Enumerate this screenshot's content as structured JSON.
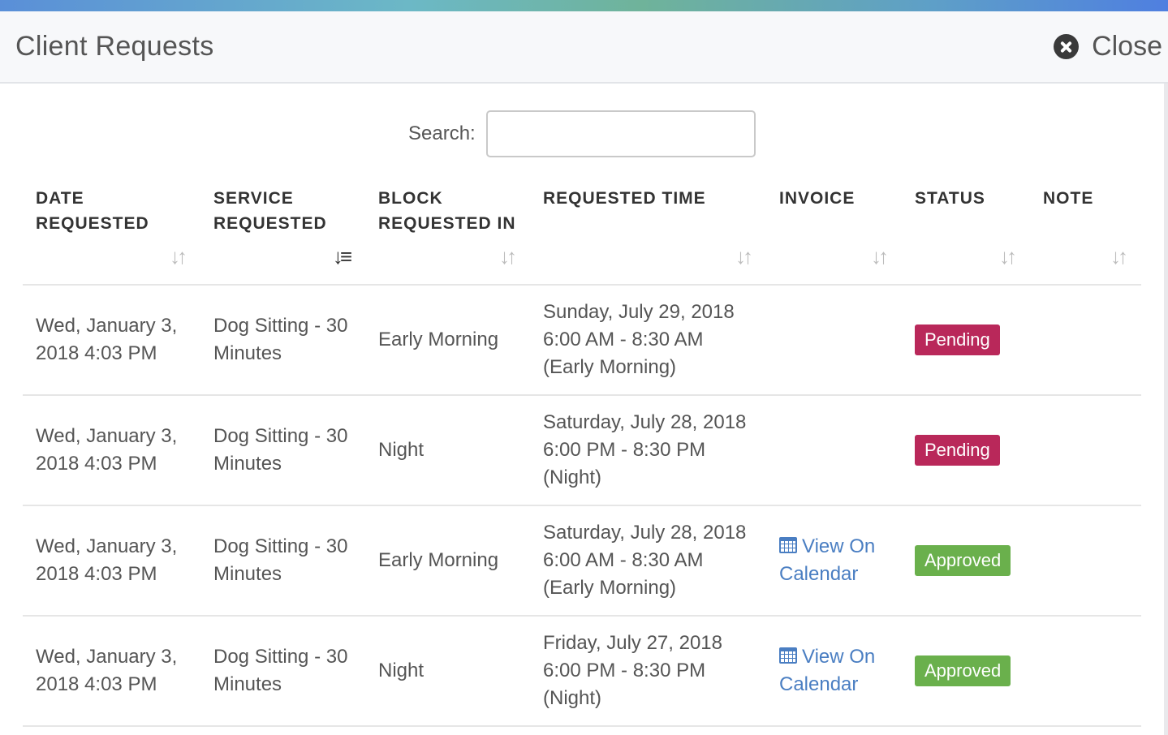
{
  "header": {
    "title": "Client Requests",
    "close_label": "Close"
  },
  "search": {
    "label": "Search:",
    "value": ""
  },
  "columns": [
    {
      "label": "DATE REQUESTED",
      "sort": "unsorted"
    },
    {
      "label": "SERVICE REQUESTED",
      "sort": "sorted-ascending"
    },
    {
      "label": "BLOCK REQUESTED IN",
      "sort": "unsorted"
    },
    {
      "label": "REQUESTED TIME",
      "sort": "unsorted"
    },
    {
      "label": "INVOICE",
      "sort": "unsorted"
    },
    {
      "label": "STATUS",
      "sort": "unsorted"
    },
    {
      "label": "NOTE",
      "sort": "unsorted"
    }
  ],
  "rows": [
    {
      "date_requested": "Wed, January 3, 2018 4:03 PM",
      "service": "Dog Sitting - 30 Minutes",
      "block": "Early Morning",
      "time_date": "Sunday, July 29, 2018",
      "time_range": "6:00 AM - 8:30 AM",
      "time_block": "(Early Morning)",
      "invoice": "",
      "status": "Pending",
      "status_color": "#b9285a",
      "note": ""
    },
    {
      "date_requested": "Wed, January 3, 2018 4:03 PM",
      "service": "Dog Sitting - 30 Minutes",
      "block": "Night",
      "time_date": "Saturday, July 28, 2018",
      "time_range": "6:00 PM - 8:30 PM",
      "time_block": "(Night)",
      "invoice": "",
      "status": "Pending",
      "status_color": "#b9285a",
      "note": ""
    },
    {
      "date_requested": "Wed, January 3, 2018 4:03 PM",
      "service": "Dog Sitting - 30 Minutes",
      "block": "Early Morning",
      "time_date": "Saturday, July 28, 2018",
      "time_range": "6:00 AM - 8:30 AM",
      "time_block": "(Early Morning)",
      "invoice": "View On Calendar",
      "status": "Approved",
      "status_color": "#6ab04c",
      "note": ""
    },
    {
      "date_requested": "Wed, January 3, 2018 4:03 PM",
      "service": "Dog Sitting - 30 Minutes",
      "block": "Night",
      "time_date": "Friday, July 27, 2018",
      "time_range": "6:00 PM - 8:30 PM",
      "time_block": "(Night)",
      "invoice": "View On Calendar",
      "status": "Approved",
      "status_color": "#6ab04c",
      "note": ""
    }
  ],
  "icons": {
    "close": "close-circle-icon",
    "sort": "sort-icon",
    "sort_active": "sort-ascending-icon",
    "calendar": "calendar-icon"
  },
  "colors": {
    "link": "#4a7ec2",
    "pending": "#b9285a",
    "approved": "#6ab04c"
  }
}
